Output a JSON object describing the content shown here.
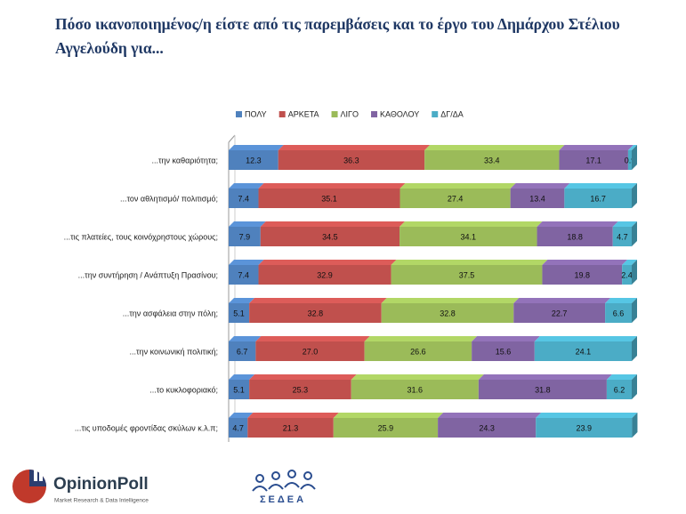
{
  "chart_data": {
    "type": "stacked-bar-horizontal",
    "title": "Πόσο ικανοποιημένος/η είστε από τις παρεμβάσεις και το έργο του  Δημάρχου Στέλιου Αγγελούδη για...",
    "categories": [
      "...την καθαριότητα;",
      "...τον αθλητισμό/ πολιτισμό;",
      "...τις πλατείες, τους κοινόχρηστους χώρους;",
      "...την συντήρηση / Ανάπτυξη Πρασίνου;",
      "...την ασφάλεια στην πόλη;",
      "...την κοινωνική πολιτική;",
      "...το κυκλοφοριακό;",
      "...τις υποδομές φροντίδας σκύλων κ.λ.π;"
    ],
    "series": [
      {
        "name": "ΠΟΛΥ",
        "color": "#4f81bd",
        "values": [
          12.3,
          7.4,
          7.9,
          7.4,
          5.1,
          6.7,
          5.1,
          4.7
        ],
        "value_labels": [
          "12.3",
          "7.4",
          "7.9",
          "7.4",
          "5.1",
          "6.7",
          "5.1",
          "4.7"
        ]
      },
      {
        "name": "ΑΡΚΕΤΑ",
        "color": "#c0504d",
        "values": [
          36.3,
          35.1,
          34.5,
          32.9,
          32.8,
          27.0,
          25.3,
          21.3
        ],
        "value_labels": [
          "36.3",
          "35.1",
          "34.5",
          "32.9",
          "32.8",
          "27.0",
          "25.3",
          "21.3"
        ]
      },
      {
        "name": "ΛΙΓΟ",
        "color": "#9bbb59",
        "values": [
          33.4,
          27.4,
          34.1,
          37.5,
          32.8,
          26.6,
          31.6,
          25.9
        ],
        "value_labels": [
          "33.4",
          "27.4",
          "34.1",
          "37.5",
          "32.8",
          "26.6",
          "31.6",
          "25.9"
        ]
      },
      {
        "name": "ΚΑΘΟΛΟΥ",
        "color": "#8064a2",
        "values": [
          17.1,
          13.4,
          18.8,
          19.8,
          22.7,
          15.6,
          31.8,
          24.3
        ],
        "value_labels": [
          "17.1",
          "13.4",
          "18.8",
          "19.8",
          "22.7",
          "15.6",
          "31.8",
          "24.3"
        ]
      },
      {
        "name": "ΔΓ/ΔΑ",
        "color": "#4bacc6",
        "values": [
          0.9,
          16.7,
          4.7,
          2.4,
          6.6,
          24.1,
          6.2,
          23.9
        ],
        "value_labels": [
          "0.9",
          "16.7",
          "4.7",
          "2.4",
          "6.6",
          "24.1",
          "6.2",
          "23.9"
        ]
      }
    ],
    "xlim": [
      0,
      100
    ],
    "legend": "top"
  },
  "logos": {
    "opinionpoll": "OpinionPoll",
    "opinionpoll_tagline": "Market Research & Data Intelligence",
    "sedea": "ΣΕΔΕΑ"
  }
}
